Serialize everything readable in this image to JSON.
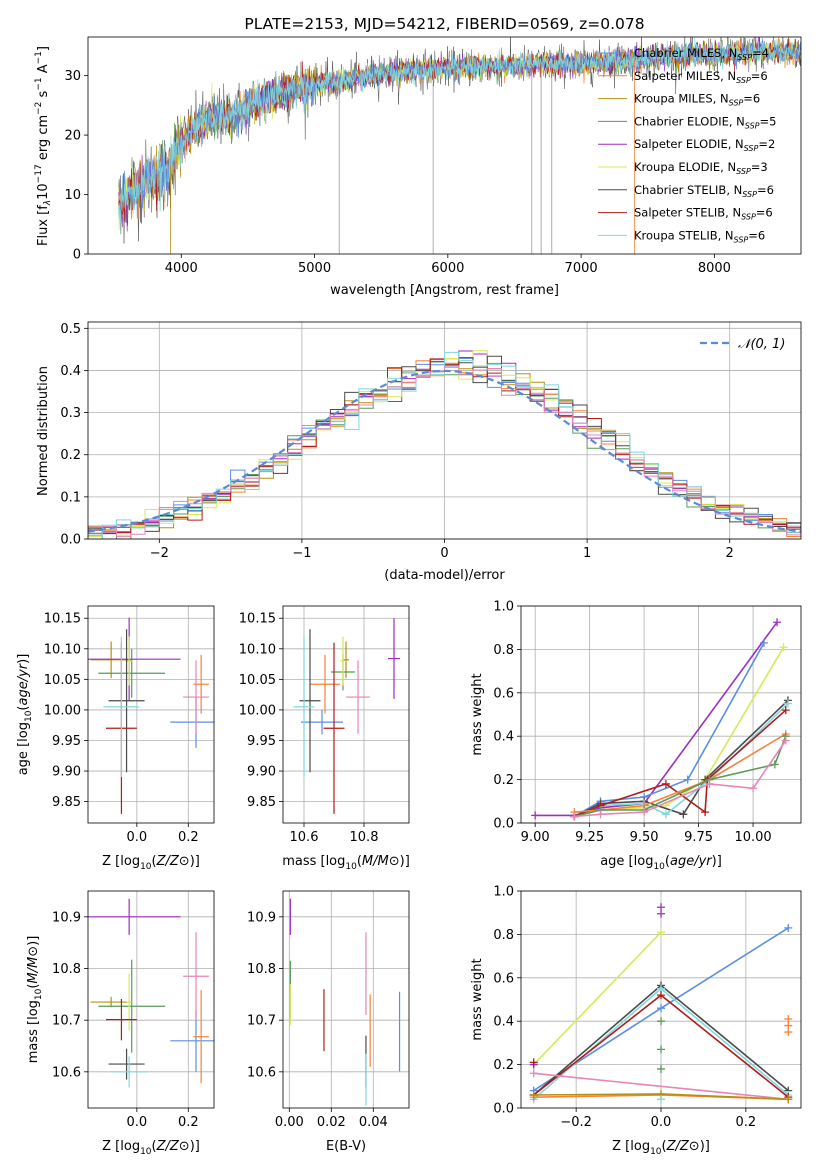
{
  "colors": {
    "Chabrier MILES": "#5b8ee6",
    "Salpeter MILES": "#f5833a",
    "Kroupa MILES": "#b8900f",
    "Chabrier ELODIE": "#5a9a5a",
    "Salpeter ELODIE": "#9b2fc2",
    "Kroupa ELODIE": "#d6ea55",
    "Chabrier STELIB": "#4a4a4a",
    "Salpeter STELIB": "#b01c1c",
    "Kroupa STELIB": "#7fd8dc",
    "pink": "#e884b6",
    "gauss": "#5b8ad6"
  },
  "chart_data": [
    {
      "type": "line",
      "title": "PLATE=2153, MJD=54212, FIBERID=0569, z=0.078",
      "xlabel": "wavelength [Angstrom, rest frame]",
      "ylabel_parts": [
        "Flux [f",
        "λ",
        "10",
        "−17",
        " erg cm",
        "−2",
        " s",
        "−1",
        " A",
        "−1",
        "]"
      ],
      "xlim": [
        3300,
        8650
      ],
      "ylim": [
        0,
        36.5
      ],
      "xticks": [
        4000,
        5000,
        6000,
        7000,
        8000
      ],
      "yticks": [
        0,
        10,
        20,
        30
      ],
      "grid": false,
      "legend": "upper right",
      "legend_entries": [
        {
          "name": "Chabrier MILES",
          "n": "4"
        },
        {
          "name": "Salpeter MILES",
          "n": "6"
        },
        {
          "name": "Kroupa MILES",
          "n": "6"
        },
        {
          "name": "Chabrier ELODIE",
          "n": "5"
        },
        {
          "name": "Salpeter ELODIE",
          "n": "2"
        },
        {
          "name": "Kroupa ELODIE",
          "n": "3"
        },
        {
          "name": "Chabrier STELIB",
          "n": "6"
        },
        {
          "name": "Salpeter STELIB",
          "n": "6"
        },
        {
          "name": "Kroupa STELIB",
          "n": "6"
        }
      ],
      "legend_sub": "SSP",
      "spectrum_x_range": [
        3530,
        8650
      ],
      "continuum_points": [
        [
          3530,
          8
        ],
        [
          3650,
          11
        ],
        [
          3800,
          13
        ],
        [
          3900,
          13.5
        ],
        [
          3950,
          17
        ],
        [
          4000,
          19
        ],
        [
          4100,
          21
        ],
        [
          4200,
          22.5
        ],
        [
          4400,
          23.5
        ],
        [
          4600,
          26
        ],
        [
          4800,
          27.5
        ],
        [
          5000,
          28.5
        ],
        [
          5200,
          29
        ],
        [
          5400,
          30
        ],
        [
          5600,
          30.5
        ],
        [
          5800,
          31
        ],
        [
          6000,
          31.2
        ],
        [
          6200,
          31.5
        ],
        [
          6400,
          31.5
        ],
        [
          6600,
          31.8
        ],
        [
          6800,
          32
        ],
        [
          7000,
          32
        ],
        [
          7200,
          32.3
        ],
        [
          7500,
          33
        ],
        [
          7800,
          33.5
        ],
        [
          8000,
          33.5
        ],
        [
          8300,
          34
        ],
        [
          8650,
          34
        ]
      ],
      "spike_x": [
        3920,
        5185,
        5890,
        6630,
        6700,
        6780,
        7400
      ]
    },
    {
      "type": "area",
      "xlabel": "(data-model)/error",
      "ylabel": "Normed distribution",
      "xlim": [
        -2.5,
        2.5
      ],
      "ylim": [
        0,
        0.515
      ],
      "xticks": [
        -2,
        -1,
        0,
        1,
        2
      ],
      "yticks": [
        0.0,
        0.1,
        0.2,
        0.3,
        0.4,
        0.5
      ],
      "grid": true,
      "legend": "upper right",
      "legend_label": "𝒩(0, 1)",
      "hist_step": 0.1
    },
    {
      "type": "scatter",
      "xlabel": "Z [log10(Z/Z⊙)]",
      "ylabel": "age  [log10(age/yr)]",
      "xlim": [
        -0.19,
        0.3
      ],
      "ylim": [
        9.815,
        10.17
      ],
      "xticks": [
        0.0,
        0.2
      ],
      "yticks": [
        9.85,
        9.9,
        9.95,
        10.0,
        10.05,
        10.1,
        10.15
      ],
      "grid": true,
      "points": [
        {
          "c": "Chabrier MILES",
          "x": 0.23,
          "y": 9.98,
          "xerr": 0.1,
          "yerr": 0.042
        },
        {
          "c": "Salpeter MILES",
          "x": 0.25,
          "y": 10.042,
          "xerr": 0.03,
          "yerr": 0.048
        },
        {
          "c": "Kroupa MILES",
          "x": -0.1,
          "y": 10.082,
          "xerr": 0.08,
          "yerr": 0.03
        },
        {
          "c": "Chabrier ELODIE",
          "x": -0.02,
          "y": 10.06,
          "xerr": 0.13,
          "yerr": 0.04
        },
        {
          "c": "Salpeter ELODIE",
          "x": -0.03,
          "y": 10.083,
          "xerr": 0.2,
          "yerr": 0.068
        },
        {
          "c": "Kroupa ELODIE",
          "x": -0.03,
          "y": 10.08,
          "xerr": 0.01,
          "yerr": 0.04
        },
        {
          "c": "Chabrier STELIB",
          "x": -0.04,
          "y": 10.015,
          "xerr": 0.07,
          "yerr": 0.117
        },
        {
          "c": "Salpeter STELIB",
          "x": -0.06,
          "y": 9.97,
          "xerr": 0.06,
          "yerr": 0.14
        },
        {
          "c": "Kroupa STELIB",
          "x": -0.06,
          "y": 10.005,
          "xerr": 0.07,
          "yerr": 0.115
        },
        {
          "c": "pink",
          "x": 0.23,
          "y": 10.021,
          "xerr": 0.05,
          "yerr": 0.06
        }
      ]
    },
    {
      "type": "scatter",
      "xlabel": "mass [log10(M/M⊙)]",
      "ylabel": "",
      "xlim": [
        10.53,
        10.95
      ],
      "ylim": [
        9.815,
        10.17
      ],
      "xticks": [
        10.6,
        10.8
      ],
      "yticks": [
        9.85,
        9.9,
        9.95,
        10.0,
        10.05,
        10.1,
        10.15
      ],
      "grid": true,
      "points": [
        {
          "c": "Chabrier MILES",
          "x": 10.66,
          "y": 9.98,
          "xerr": 0.07,
          "yerr": 0.02
        },
        {
          "c": "Salpeter MILES",
          "x": 10.67,
          "y": 10.042,
          "xerr": 0.05,
          "yerr": 0.048
        },
        {
          "c": "Kroupa MILES",
          "x": 10.74,
          "y": 10.082,
          "xerr": 0.01,
          "yerr": 0.03
        },
        {
          "c": "Chabrier ELODIE",
          "x": 10.73,
          "y": 10.062,
          "xerr": 0.04,
          "yerr": 0.03
        },
        {
          "c": "Salpeter ELODIE",
          "x": 10.9,
          "y": 10.084,
          "xerr": 0.02,
          "yerr": 0.066
        },
        {
          "c": "Kroupa ELODIE",
          "x": 10.73,
          "y": 10.08,
          "xerr": 0.01,
          "yerr": 0.04
        },
        {
          "c": "Chabrier STELIB",
          "x": 10.62,
          "y": 10.015,
          "xerr": 0.035,
          "yerr": 0.117
        },
        {
          "c": "Salpeter STELIB",
          "x": 10.7,
          "y": 9.97,
          "xerr": 0.035,
          "yerr": 0.14
        },
        {
          "c": "Kroupa STELIB",
          "x": 10.6,
          "y": 10.005,
          "xerr": 0.035,
          "yerr": 0.115
        },
        {
          "c": "pink",
          "x": 10.78,
          "y": 10.021,
          "xerr": 0.04,
          "yerr": 0.06
        }
      ]
    },
    {
      "type": "line",
      "xlabel": "age  [log10(age/yr)]",
      "ylabel": "mass weight",
      "xlim": [
        8.935,
        10.22
      ],
      "ylim": [
        0,
        1.0
      ],
      "xticks": [
        9.0,
        9.25,
        9.5,
        9.75,
        10.0
      ],
      "yticks": [
        0.0,
        0.2,
        0.4,
        0.6,
        0.8,
        1.0
      ],
      "grid": true,
      "series": [
        {
          "c": "Salpeter ELODIE",
          "x": [
            9.0,
            9.18,
            9.3,
            9.5,
            10.11
          ],
          "y": [
            0.035,
            0.035,
            0.07,
            0.09,
            0.925
          ]
        },
        {
          "c": "Kroupa ELODIE",
          "x": [
            9.18,
            9.3,
            9.5,
            9.6,
            9.78,
            10.14
          ],
          "y": [
            0.03,
            0.06,
            0.07,
            0.08,
            0.2,
            0.81
          ]
        },
        {
          "c": "Chabrier MILES",
          "x": [
            9.18,
            9.3,
            9.5,
            9.7,
            10.05
          ],
          "y": [
            0.03,
            0.1,
            0.12,
            0.2,
            0.83
          ]
        },
        {
          "c": "Chabrier STELIB",
          "x": [
            9.18,
            9.3,
            9.5,
            9.68,
            9.78,
            10.16
          ],
          "y": [
            0.03,
            0.09,
            0.1,
            0.04,
            0.2,
            0.565
          ]
        },
        {
          "c": "Kroupa STELIB",
          "x": [
            9.18,
            9.3,
            9.5,
            9.6,
            9.8,
            10.16
          ],
          "y": [
            0.03,
            0.08,
            0.09,
            0.04,
            0.2,
            0.55
          ]
        },
        {
          "c": "Salpeter STELIB",
          "x": [
            9.18,
            9.3,
            9.6,
            9.78,
            9.79,
            10.15
          ],
          "y": [
            0.03,
            0.08,
            0.18,
            0.05,
            0.2,
            0.52
          ]
        },
        {
          "c": "Salpeter MILES",
          "x": [
            9.18,
            9.3,
            9.5,
            9.8,
            10.15
          ],
          "y": [
            0.05,
            0.06,
            0.08,
            0.2,
            0.41
          ]
        },
        {
          "c": "Chabrier ELODIE",
          "x": [
            9.18,
            9.3,
            9.5,
            9.8,
            10.1,
            10.15
          ],
          "y": [
            0.03,
            0.06,
            0.06,
            0.2,
            0.27,
            0.4
          ]
        },
        {
          "c": "pink",
          "x": [
            9.18,
            9.3,
            9.5,
            9.8,
            10.0,
            10.15
          ],
          "y": [
            0.03,
            0.04,
            0.05,
            0.18,
            0.16,
            0.38
          ]
        }
      ]
    },
    {
      "type": "scatter",
      "xlabel": "Z [log10(Z/Z⊙)]",
      "ylabel": "mass [log10(M/M⊙)]",
      "xlim": [
        -0.19,
        0.3
      ],
      "ylim": [
        10.53,
        10.95
      ],
      "xticks": [
        0.0,
        0.2
      ],
      "yticks": [
        10.6,
        10.7,
        10.8,
        10.9
      ],
      "grid": true,
      "points": [
        {
          "c": "Chabrier MILES",
          "x": 0.23,
          "y": 10.66,
          "xerr": 0.1,
          "yerr": 0.06
        },
        {
          "c": "Salpeter MILES",
          "x": 0.25,
          "y": 10.668,
          "xerr": 0.03,
          "yerr": 0.09
        },
        {
          "c": "Kroupa MILES",
          "x": -0.1,
          "y": 10.735,
          "xerr": 0.08,
          "yerr": 0.01
        },
        {
          "c": "Chabrier ELODIE",
          "x": -0.02,
          "y": 10.727,
          "xerr": 0.13,
          "yerr": 0.09
        },
        {
          "c": "Salpeter ELODIE",
          "x": -0.03,
          "y": 10.9,
          "xerr": 0.2,
          "yerr": 0.035
        },
        {
          "c": "Kroupa ELODIE",
          "x": -0.03,
          "y": 10.735,
          "xerr": 0.01,
          "yerr": 0.055
        },
        {
          "c": "Chabrier STELIB",
          "x": -0.04,
          "y": 10.615,
          "xerr": 0.07,
          "yerr": 0.03
        },
        {
          "c": "Salpeter STELIB",
          "x": -0.06,
          "y": 10.701,
          "xerr": 0.06,
          "yerr": 0.04
        },
        {
          "c": "Kroupa STELIB",
          "x": -0.03,
          "y": 10.6,
          "xerr": 0.07,
          "yerr": 0.03
        },
        {
          "c": "pink",
          "x": 0.23,
          "y": 10.785,
          "xerr": 0.05,
          "yerr": 0.085
        }
      ]
    },
    {
      "type": "scatter",
      "xlabel": "E(B-V)",
      "ylabel": "",
      "xlim": [
        -0.003,
        0.057
      ],
      "ylim": [
        10.53,
        10.95
      ],
      "xticks": [
        0.0,
        0.02,
        0.04
      ],
      "yticks": [
        10.6,
        10.7,
        10.8,
        10.9
      ],
      "grid": true,
      "points": [
        {
          "c": "Chabrier MILES",
          "x": 0.0525,
          "y": 10.678,
          "xerr": 0,
          "yerr": 0.077
        },
        {
          "c": "Salpeter MILES",
          "x": 0.0385,
          "y": 10.68,
          "xerr": 0,
          "yerr": 0.07
        },
        {
          "c": "Chabrier ELODIE",
          "x": 0.0005,
          "y": 10.76,
          "xerr": 0,
          "yerr": 0.055
        },
        {
          "c": "Salpeter ELODIE",
          "x": 0.0005,
          "y": 10.9,
          "xerr": 0,
          "yerr": 0.035
        },
        {
          "c": "Kroupa ELODIE",
          "x": 0.0005,
          "y": 10.73,
          "xerr": 0,
          "yerr": 0.04
        },
        {
          "c": "Chabrier STELIB",
          "x": 0.0365,
          "y": 10.62,
          "xerr": 0,
          "yerr": 0.05
        },
        {
          "c": "Salpeter STELIB",
          "x": 0.0165,
          "y": 10.7,
          "xerr": 0,
          "yerr": 0.06
        },
        {
          "c": "Kroupa STELIB",
          "x": 0.0365,
          "y": 10.585,
          "xerr": 0,
          "yerr": 0.05
        },
        {
          "c": "pink",
          "x": 0.0365,
          "y": 10.79,
          "xerr": 0,
          "yerr": 0.08
        }
      ]
    },
    {
      "type": "line",
      "xlabel": "Z [log10(Z/Z⊙)]",
      "ylabel": "mass weight",
      "xlim": [
        -0.33,
        0.33
      ],
      "ylim": [
        0,
        1.0
      ],
      "xticks": [
        -0.2,
        0.0,
        0.2
      ],
      "yticks": [
        0.0,
        0.2,
        0.4,
        0.6,
        0.8,
        1.0
      ],
      "grid": true,
      "series": [
        {
          "c": "Chabrier MILES",
          "x": [
            -0.3,
            0.0,
            0.3
          ],
          "y": [
            0.08,
            0.46,
            0.83
          ]
        },
        {
          "c": "Kroupa ELODIE",
          "x": [
            -0.3,
            0.0
          ],
          "y": [
            0.2,
            0.81
          ]
        },
        {
          "c": "Chabrier STELIB",
          "x": [
            -0.3,
            0.0,
            0.3
          ],
          "y": [
            0.06,
            0.565,
            0.08
          ]
        },
        {
          "c": "Kroupa STELIB",
          "x": [
            -0.3,
            0.0,
            0.3
          ],
          "y": [
            0.04,
            0.55,
            0.06
          ]
        },
        {
          "c": "Salpeter STELIB",
          "x": [
            -0.3,
            0.0,
            0.3
          ],
          "y": [
            0.06,
            0.52,
            0.05
          ]
        },
        {
          "c": "pink",
          "x": [
            -0.3,
            0.3
          ],
          "y": [
            0.16,
            0.04
          ]
        },
        {
          "c": "Salpeter MILES",
          "x": [
            -0.3,
            0.0,
            0.3
          ],
          "y": [
            0.05,
            0.06,
            0.04
          ]
        },
        {
          "c": "Kroupa MILES",
          "x": [
            -0.3,
            0.0,
            0.3
          ],
          "y": [
            0.06,
            0.065,
            0.04
          ]
        }
      ],
      "markers": [
        {
          "c": "Salpeter ELODIE",
          "x": 0.0,
          "y": 0.925
        },
        {
          "c": "Salpeter ELODIE",
          "x": 0.0,
          "y": 0.895
        },
        {
          "c": "Chabrier ELODIE",
          "x": 0.0,
          "y": 0.27
        },
        {
          "c": "Chabrier ELODIE",
          "x": 0.0,
          "y": 0.18
        },
        {
          "c": "Chabrier ELODIE",
          "x": 0.0,
          "y": 0.4
        },
        {
          "c": "Salpeter MILES",
          "x": 0.3,
          "y": 0.41
        },
        {
          "c": "Salpeter MILES",
          "x": 0.3,
          "y": 0.38
        },
        {
          "c": "Salpeter MILES",
          "x": 0.3,
          "y": 0.35
        },
        {
          "c": "Salpeter ELODIE",
          "x": -0.3,
          "y": 0.2
        },
        {
          "c": "Kroupa STELIB",
          "x": 0.0,
          "y": 0.04
        },
        {
          "c": "Salpeter STELIB",
          "x": -0.3,
          "y": 0.21
        }
      ]
    }
  ]
}
